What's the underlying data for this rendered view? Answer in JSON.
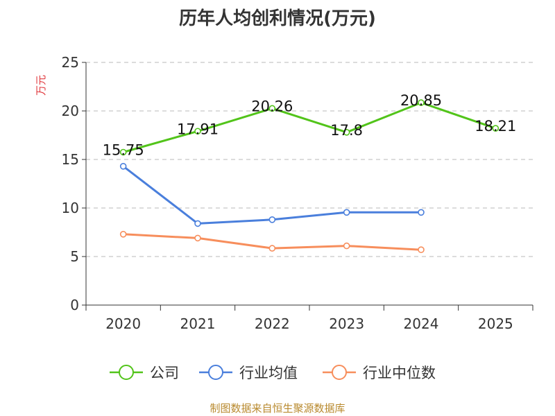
{
  "chart_data": {
    "type": "line",
    "title": "历年人均创利情况(万元)",
    "ylabel": "万元",
    "xlabel": "",
    "ylim": [
      0,
      25
    ],
    "yticks": [
      0,
      5,
      10,
      15,
      20,
      25
    ],
    "categories": [
      "2020",
      "2021",
      "2022",
      "2023",
      "2024",
      "2025"
    ],
    "grid": true,
    "legend_position": "bottom",
    "series": [
      {
        "name": "公司",
        "color": "#52c41a",
        "values": [
          15.75,
          17.91,
          20.26,
          17.8,
          20.85,
          18.21
        ],
        "labels": [
          "15.75",
          "17.91",
          "20.26",
          "17.8",
          "20.85",
          "18.21"
        ]
      },
      {
        "name": "行业均值",
        "color": "#4a7fdc",
        "values": [
          14.3,
          8.4,
          8.8,
          9.55,
          9.55,
          null
        ]
      },
      {
        "name": "行业中位数",
        "color": "#f78e5c",
        "values": [
          7.3,
          6.9,
          5.85,
          6.1,
          5.7,
          null
        ]
      }
    ]
  },
  "source": "制图数据来自恒生聚源数据库"
}
